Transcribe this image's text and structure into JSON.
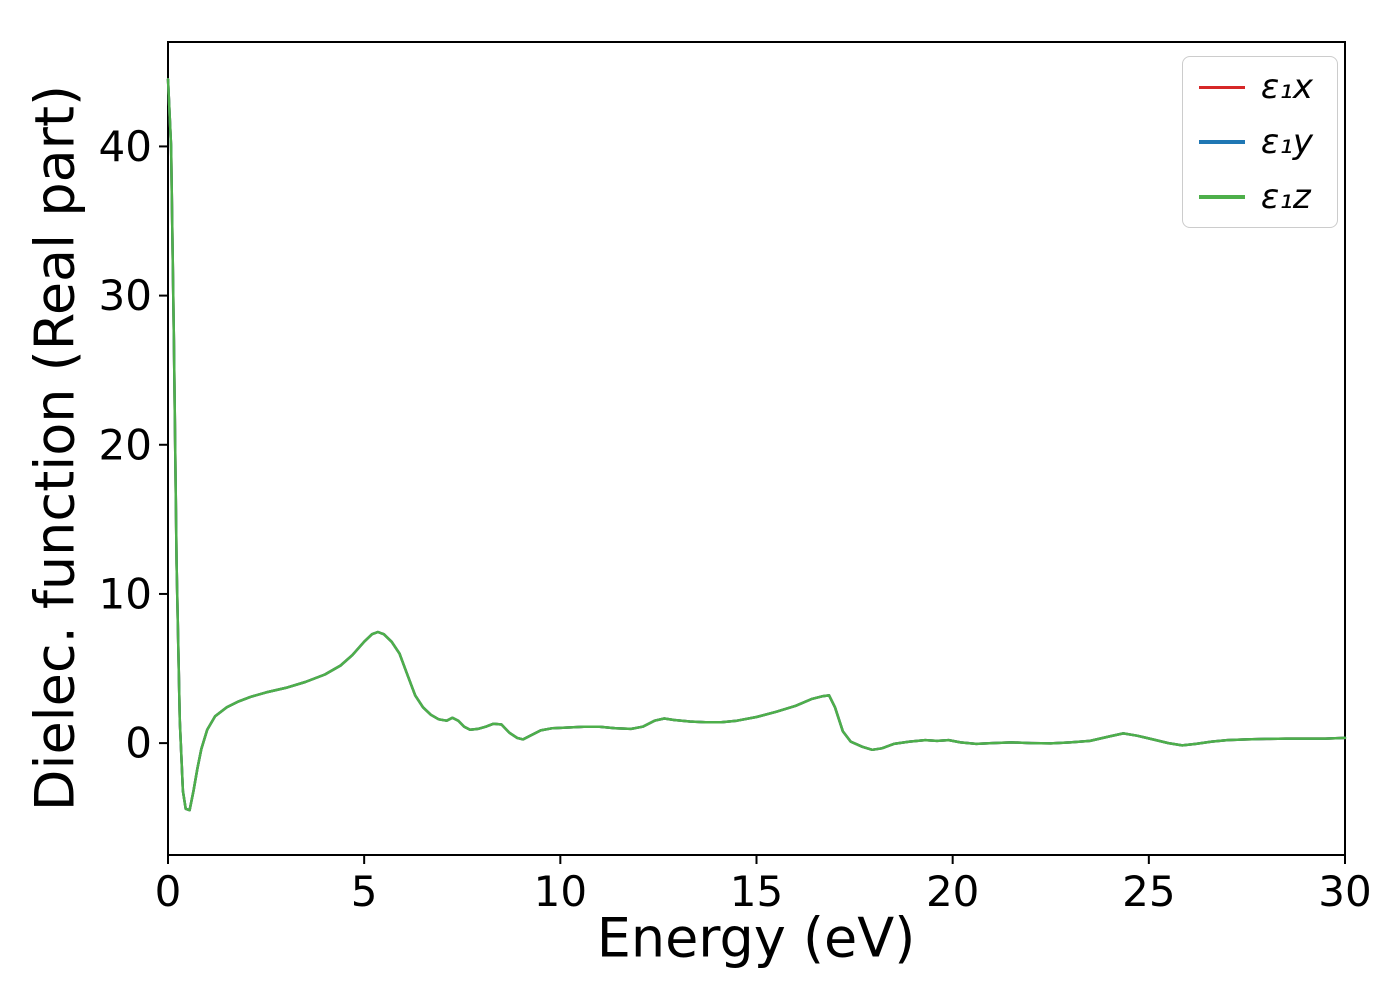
{
  "figure": {
    "background": "#ffffff",
    "spine_color": "#000000"
  },
  "chart_data": {
    "type": "line",
    "title": "",
    "xlabel": "Energy (eV)",
    "ylabel": "Dielec. function (Real part)",
    "xlim": [
      0,
      30
    ],
    "ylim": [
      -7.5,
      47
    ],
    "xticks": [
      0,
      5,
      10,
      15,
      20,
      25,
      30
    ],
    "yticks": [
      0,
      10,
      20,
      30,
      40
    ],
    "grid": false,
    "legend_position": "upper right",
    "note": "All three series (x, y, z components) overlap almost exactly; only the green z-trace is visible on top.",
    "x": [
      0,
      0.08,
      0.15,
      0.22,
      0.3,
      0.38,
      0.45,
      0.55,
      0.65,
      0.75,
      0.85,
      1.0,
      1.2,
      1.5,
      1.8,
      2.1,
      2.5,
      3.0,
      3.5,
      4.0,
      4.4,
      4.7,
      5.0,
      5.2,
      5.35,
      5.5,
      5.7,
      5.9,
      6.1,
      6.3,
      6.5,
      6.7,
      6.9,
      7.1,
      7.25,
      7.4,
      7.55,
      7.7,
      7.9,
      8.1,
      8.3,
      8.5,
      8.7,
      8.9,
      9.05,
      9.2,
      9.5,
      9.8,
      10.2,
      10.6,
      11.0,
      11.4,
      11.8,
      12.1,
      12.4,
      12.65,
      12.9,
      13.3,
      13.7,
      14.1,
      14.5,
      15.0,
      15.5,
      16.0,
      16.4,
      16.7,
      16.85,
      17.0,
      17.2,
      17.4,
      17.7,
      17.95,
      18.2,
      18.5,
      18.9,
      19.3,
      19.6,
      19.9,
      20.2,
      20.6,
      21.0,
      21.5,
      22.0,
      22.5,
      23.0,
      23.5,
      24.0,
      24.35,
      24.7,
      25.1,
      25.5,
      25.85,
      26.2,
      26.6,
      27.0,
      27.5,
      28.0,
      28.5,
      29.0,
      29.5,
      30.0
    ],
    "series": [
      {
        "name": "eps1x",
        "label": "ε₁x",
        "color": "#d62728",
        "values": [
          44.5,
          40,
          27,
          12,
          1.5,
          -3.2,
          -4.4,
          -4.5,
          -3.2,
          -1.7,
          -0.4,
          0.9,
          1.8,
          2.4,
          2.8,
          3.1,
          3.4,
          3.7,
          4.1,
          4.6,
          5.2,
          5.9,
          6.8,
          7.3,
          7.45,
          7.3,
          6.8,
          6.0,
          4.6,
          3.2,
          2.4,
          1.9,
          1.6,
          1.5,
          1.7,
          1.5,
          1.1,
          0.9,
          0.95,
          1.1,
          1.3,
          1.25,
          0.7,
          0.35,
          0.25,
          0.45,
          0.85,
          1.0,
          1.05,
          1.1,
          1.1,
          1.0,
          0.95,
          1.1,
          1.5,
          1.65,
          1.55,
          1.45,
          1.4,
          1.4,
          1.5,
          1.75,
          2.1,
          2.5,
          2.95,
          3.15,
          3.2,
          2.4,
          0.8,
          0.1,
          -0.25,
          -0.45,
          -0.35,
          -0.05,
          0.1,
          0.2,
          0.15,
          0.2,
          0.05,
          -0.05,
          0.0,
          0.05,
          0.0,
          -0.02,
          0.05,
          0.15,
          0.45,
          0.65,
          0.5,
          0.25,
          0.0,
          -0.15,
          -0.05,
          0.1,
          0.2,
          0.25,
          0.28,
          0.3,
          0.3,
          0.3,
          0.35
        ]
      },
      {
        "name": "eps1y",
        "label": "ε₁y",
        "color": "#1f77b4",
        "values": [
          44.5,
          40,
          27,
          12,
          1.5,
          -3.2,
          -4.4,
          -4.5,
          -3.2,
          -1.7,
          -0.4,
          0.9,
          1.8,
          2.4,
          2.8,
          3.1,
          3.4,
          3.7,
          4.1,
          4.6,
          5.2,
          5.9,
          6.8,
          7.3,
          7.45,
          7.3,
          6.8,
          6.0,
          4.6,
          3.2,
          2.4,
          1.9,
          1.6,
          1.5,
          1.7,
          1.5,
          1.1,
          0.9,
          0.95,
          1.1,
          1.3,
          1.25,
          0.7,
          0.35,
          0.25,
          0.45,
          0.85,
          1.0,
          1.05,
          1.1,
          1.1,
          1.0,
          0.95,
          1.1,
          1.5,
          1.65,
          1.55,
          1.45,
          1.4,
          1.4,
          1.5,
          1.75,
          2.1,
          2.5,
          2.95,
          3.15,
          3.2,
          2.4,
          0.8,
          0.1,
          -0.25,
          -0.45,
          -0.35,
          -0.05,
          0.1,
          0.2,
          0.15,
          0.2,
          0.05,
          -0.05,
          0.0,
          0.05,
          0.0,
          -0.02,
          0.05,
          0.15,
          0.45,
          0.65,
          0.5,
          0.25,
          0.0,
          -0.15,
          -0.05,
          0.1,
          0.2,
          0.25,
          0.28,
          0.3,
          0.3,
          0.3,
          0.35
        ]
      },
      {
        "name": "eps1z",
        "label": "ε₁z",
        "color": "#4daf4a",
        "values": [
          44.5,
          40,
          27,
          12,
          1.5,
          -3.2,
          -4.4,
          -4.5,
          -3.2,
          -1.7,
          -0.4,
          0.9,
          1.8,
          2.4,
          2.8,
          3.1,
          3.4,
          3.7,
          4.1,
          4.6,
          5.2,
          5.9,
          6.8,
          7.3,
          7.45,
          7.3,
          6.8,
          6.0,
          4.6,
          3.2,
          2.4,
          1.9,
          1.6,
          1.5,
          1.7,
          1.5,
          1.1,
          0.9,
          0.95,
          1.1,
          1.3,
          1.25,
          0.7,
          0.35,
          0.25,
          0.45,
          0.85,
          1.0,
          1.05,
          1.1,
          1.1,
          1.0,
          0.95,
          1.1,
          1.5,
          1.65,
          1.55,
          1.45,
          1.4,
          1.4,
          1.5,
          1.75,
          2.1,
          2.5,
          2.95,
          3.15,
          3.2,
          2.4,
          0.8,
          0.1,
          -0.25,
          -0.45,
          -0.35,
          -0.05,
          0.1,
          0.2,
          0.15,
          0.2,
          0.05,
          -0.05,
          0.0,
          0.05,
          0.0,
          -0.02,
          0.05,
          0.15,
          0.45,
          0.65,
          0.5,
          0.25,
          0.0,
          -0.15,
          -0.05,
          0.1,
          0.2,
          0.25,
          0.28,
          0.3,
          0.3,
          0.3,
          0.35
        ]
      }
    ]
  }
}
